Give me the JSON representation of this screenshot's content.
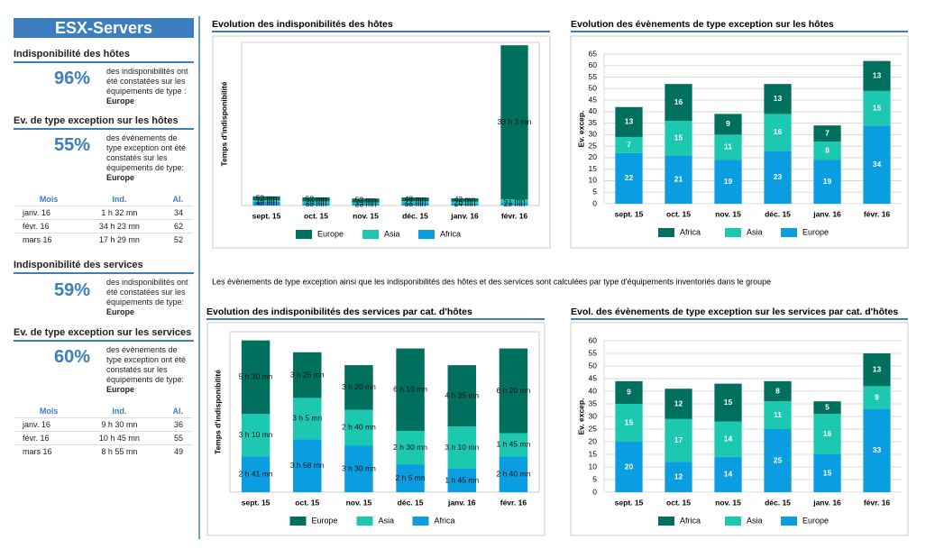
{
  "sidebar": {
    "title": "ESX-Servers",
    "sections": [
      {
        "heading": "Indisponibilité des hôtes",
        "percent": "96%",
        "text": "des indisponibilités ont été constatées sur les équipements de type :",
        "type": "Europe"
      },
      {
        "heading": "Ev. de type exception sur les hôtes",
        "percent": "55%",
        "text": "des évènements de type exception ont été constatés sur les équipements de type:",
        "type": "Europe",
        "table": {
          "headers": [
            "Mois",
            "Ind.",
            "Al."
          ],
          "rows": [
            [
              "janv. 16",
              "1 h 32 mn",
              "34"
            ],
            [
              "févr. 16",
              "34 h 23 mn",
              "62"
            ],
            [
              "mars 16",
              "17 h 29 mn",
              "52"
            ]
          ]
        }
      },
      {
        "heading": "Indisponibilité des services",
        "percent": "59%",
        "text": "des indisponibilités ont été constatées sur les équipements de type:",
        "type": "Europe"
      },
      {
        "heading": "Ev. de type exception sur les services",
        "percent": "60%",
        "text": "des évènements de type exception ont été constatés sur les équipements de type:",
        "type": "Europe",
        "table": {
          "headers": [
            "Mois",
            "Ind.",
            "Al."
          ],
          "rows": [
            [
              "janv. 16",
              "9 h 30 mn",
              "36"
            ],
            [
              "févr. 16",
              "10 h 45 mn",
              "55"
            ],
            [
              "mars 16",
              "8 h 55 mn",
              "49"
            ]
          ]
        }
      }
    ]
  },
  "note": "Les évènements de type exception ainsi que les indisponibilités des hôtes et des services sont calculées par type d'équipements inventoriés dans le groupe",
  "chart_data": [
    {
      "type": "stacked-bar",
      "title": "Evolution des indisponibilités des hôtes",
      "y_label": "Temps d'indisponibilité",
      "categories": [
        "sept. 15",
        "oct. 15",
        "nov. 15",
        "déc. 15",
        "janv. 16",
        "févr. 16"
      ],
      "series": [
        {
          "name": "Europe",
          "color": "#00705e",
          "values": [
            52,
            52,
            52,
            48,
            42,
            1983
          ],
          "value_labels": [
            "52 mn",
            "52 mn",
            "52 mn",
            "48 mn",
            "42 mn",
            "33 h 3 mn"
          ]
        },
        {
          "name": "Asia",
          "color": "#1cc9b0",
          "values": [
            18,
            20,
            15,
            22,
            26,
            51
          ],
          "value_labels": [
            "18 mn",
            "20 mn",
            "15 mn",
            "22 mn",
            "26 mn",
            "51 mn"
          ]
        },
        {
          "name": "Africa",
          "color": "#0a9de0",
          "values": [
            48,
            33,
            23,
            33,
            24,
            29
          ],
          "value_labels": [
            "48 mn",
            "33 mn",
            "23 mn",
            "33 mn",
            "24 mn",
            "29 mn"
          ]
        }
      ],
      "ylim": [
        0,
        2100
      ],
      "grid": false,
      "legend": "bottom"
    },
    {
      "type": "stacked-bar",
      "title": "Evolution des évènements de type exception sur les hôtes",
      "y_label": "Ev. excep.",
      "categories": [
        "sept. 15",
        "oct. 15",
        "nov. 15",
        "déc. 15",
        "janv. 16",
        "févr. 16"
      ],
      "series": [
        {
          "name": "Africa",
          "color": "#00705e",
          "values": [
            13,
            16,
            9,
            13,
            7,
            13
          ]
        },
        {
          "name": "Asia",
          "color": "#1cc9b0",
          "values": [
            7,
            15,
            11,
            16,
            8,
            15
          ]
        },
        {
          "name": "Europe",
          "color": "#0a9de0",
          "values": [
            22,
            21,
            19,
            23,
            19,
            34
          ]
        }
      ],
      "ylim": [
        0,
        65
      ],
      "yticks": [
        0,
        5,
        10,
        15,
        20,
        25,
        30,
        35,
        40,
        45,
        50,
        55,
        60,
        65
      ],
      "grid": true,
      "legend": "bottom"
    },
    {
      "type": "stacked-bar",
      "title": "Evolution des indisponibilités des services par cat. d'hôtes",
      "y_label": "Temps d'indisponibilité",
      "categories": [
        "sept. 15",
        "oct. 15",
        "nov. 15",
        "déc. 15",
        "janv. 16",
        "févr. 16"
      ],
      "series": [
        {
          "name": "Europe",
          "color": "#00705e",
          "values": [
            330,
            205,
            200,
            370,
            275,
            380
          ],
          "value_labels": [
            "5 h 30 mn",
            "3 h 25 mn",
            "3 h 20 mn",
            "6 h 10 mn",
            "4 h 35 mn",
            "6 h 20 mn"
          ]
        },
        {
          "name": "Asia",
          "color": "#1cc9b0",
          "values": [
            190,
            185,
            160,
            150,
            190,
            105
          ],
          "value_labels": [
            "3 h 10 mn",
            "3 h 5 mn",
            "2 h 40 mn",
            "2 h 30 mn",
            "3 h 10 mn",
            "1 h 45 mn"
          ]
        },
        {
          "name": "Africa",
          "color": "#0a9de0",
          "values": [
            161,
            238,
            210,
            125,
            105,
            160
          ],
          "value_labels": [
            "2 h 41 mn",
            "3 h 58 mn",
            "3 h 30 mn",
            "2 h 5 mn",
            "1 h 45 mn",
            "2 h 40 mn"
          ]
        }
      ],
      "ylim": [
        0,
        720
      ],
      "grid": false,
      "legend": "bottom"
    },
    {
      "type": "stacked-bar",
      "title": "Evol. des évènements de type exception sur les services par cat. d'hôtes",
      "y_label": "Ev. excep.",
      "categories": [
        "sept. 15",
        "oct. 15",
        "nov. 15",
        "déc. 15",
        "janv. 16",
        "févr. 16"
      ],
      "series": [
        {
          "name": "Africa",
          "color": "#00705e",
          "values": [
            9,
            12,
            15,
            8,
            5,
            13
          ]
        },
        {
          "name": "Asia",
          "color": "#1cc9b0",
          "values": [
            15,
            17,
            14,
            11,
            16,
            9
          ]
        },
        {
          "name": "Europe",
          "color": "#0a9de0",
          "values": [
            20,
            12,
            14,
            25,
            15,
            33
          ]
        }
      ],
      "ylim": [
        0,
        60
      ],
      "yticks": [
        0,
        5,
        10,
        15,
        20,
        25,
        30,
        35,
        40,
        45,
        50,
        55,
        60
      ],
      "grid": true,
      "legend": "bottom"
    }
  ]
}
